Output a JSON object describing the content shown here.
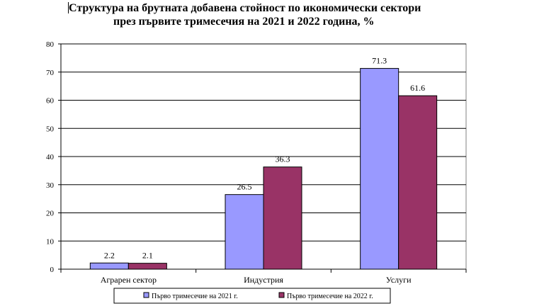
{
  "title_line1": "Структура на брутната добавена стойност по икономически сектори",
  "title_line2": "през първите тримесечия на 2021 и 2022 година, %",
  "chart_data": {
    "type": "bar",
    "title": "Структура на брутната добавена стойност по икономически сектори през първите тримесечия на 2021 и 2022 година, %",
    "categories": [
      "Аграрен сектор",
      "Индустрия",
      "Услуги"
    ],
    "series": [
      {
        "name": "Първо тримесечие на 2021 г.",
        "values": [
          2.2,
          26.5,
          71.3
        ],
        "color": "#9999ff"
      },
      {
        "name": "Първо тримесечие на 2022 г.",
        "values": [
          2.1,
          36.3,
          61.6
        ],
        "color": "#993366"
      }
    ],
    "ylim": [
      0,
      80
    ],
    "yticks": [
      "0",
      "10",
      "20",
      "30",
      "40",
      "50",
      "60",
      "70",
      "80"
    ],
    "value_labels": [
      [
        "2.2",
        "26.5",
        "71.3"
      ],
      [
        "2.1",
        "36.3",
        "61.6"
      ]
    ],
    "grid": true,
    "legend_position": "bottom"
  }
}
